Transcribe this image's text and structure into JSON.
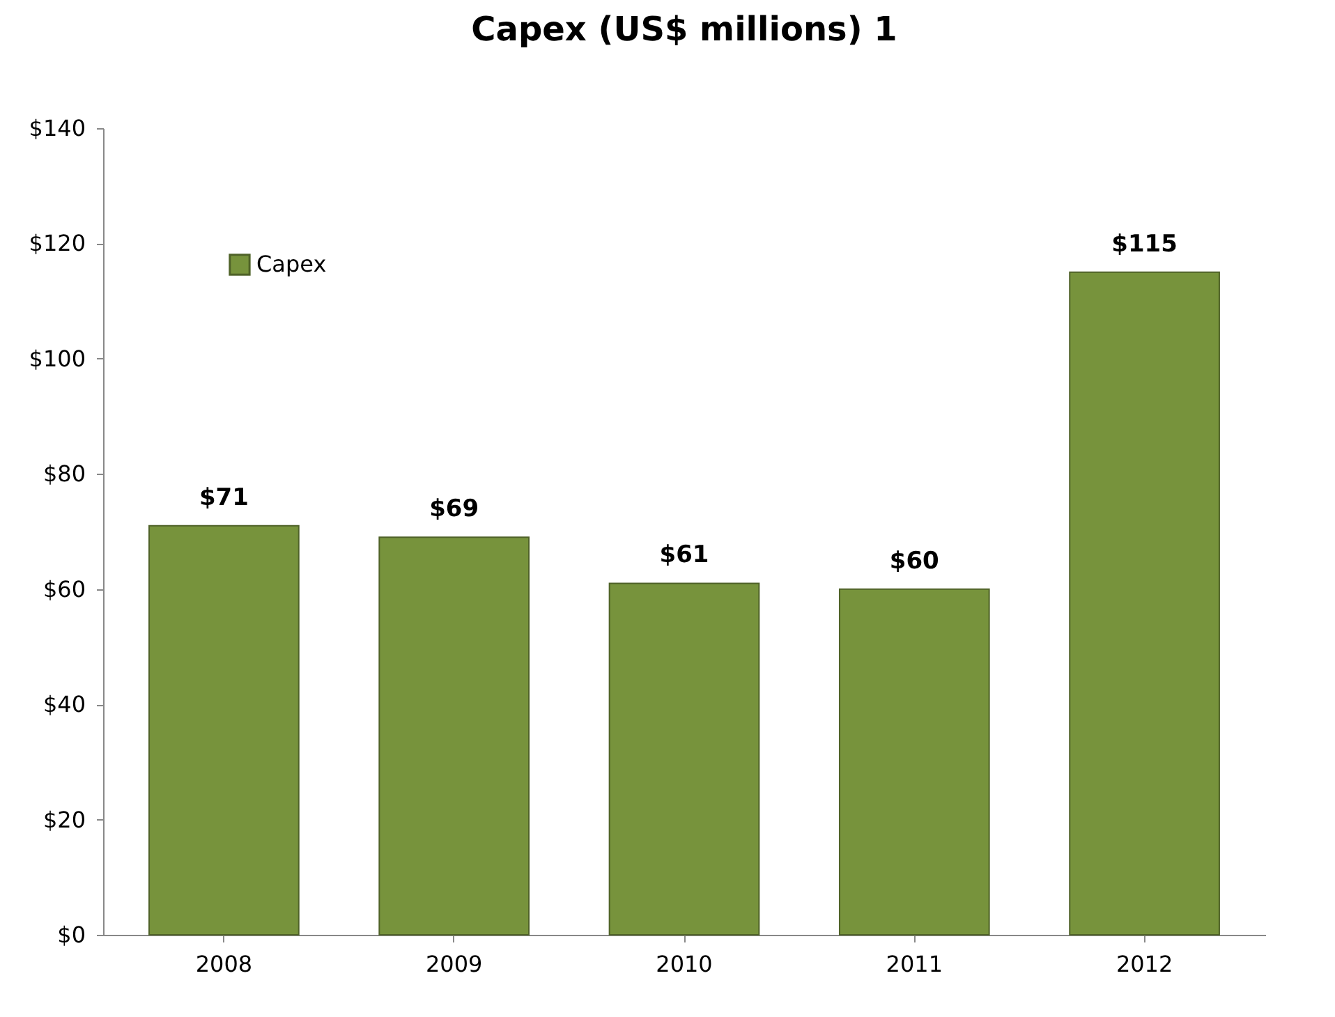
{
  "chart_data": {
    "type": "bar",
    "title": "Capex (US$ millions) 1",
    "categories": [
      "2008",
      "2009",
      "2010",
      "2011",
      "2012"
    ],
    "series": [
      {
        "name": "Capex",
        "color": "#77933c",
        "values": [
          71,
          69,
          61,
          60,
          115
        ],
        "value_labels": [
          "$71",
          "$69",
          "$61",
          "$60",
          "$115"
        ]
      }
    ],
    "ylim": [
      0,
      140
    ],
    "yticks": [
      {
        "value": 0,
        "label": "$0"
      },
      {
        "value": 20,
        "label": "$20"
      },
      {
        "value": 40,
        "label": "$40"
      },
      {
        "value": 60,
        "label": "$60"
      },
      {
        "value": 80,
        "label": "$80"
      },
      {
        "value": 100,
        "label": "$100"
      },
      {
        "value": 120,
        "label": "$120"
      },
      {
        "value": 140,
        "label": "$140"
      }
    ],
    "grid": false,
    "legend": "top left"
  }
}
